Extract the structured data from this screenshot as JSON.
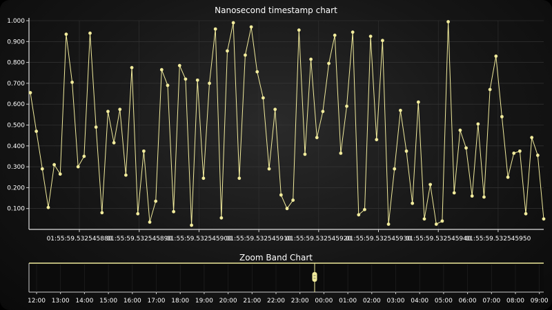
{
  "chart_data": [
    {
      "type": "line",
      "title": "Nanosecond timestamp chart",
      "xlabel": "",
      "ylabel": "",
      "ylim": [
        0,
        1.0
      ],
      "y_ticks": [
        "1.000",
        "0.900",
        "0.800",
        "0.700",
        "0.600",
        "0.500",
        "0.400",
        "0.300",
        "0.200",
        "0.100"
      ],
      "x_ticks": [
        "01:55:59.532545880",
        "01:55:59.532545890",
        "01:55:59.532545900",
        "01:55:59.532545910",
        "01:55:59.532545920",
        "01:55:59.532545930",
        "01:55:59.532545940",
        "01:55:59.532545950"
      ],
      "grid": true,
      "line_color": "#f2ec9c",
      "series": [
        {
          "values": [
            0.655,
            0.47,
            0.29,
            0.105,
            0.31,
            0.265,
            0.935,
            0.705,
            0.3,
            0.35,
            0.94,
            0.49,
            0.08,
            0.565,
            0.415,
            0.575,
            0.26,
            0.775,
            0.075,
            0.375,
            0.035,
            0.135,
            0.765,
            0.69,
            0.085,
            0.785,
            0.72,
            0.02,
            0.715,
            0.245,
            0.7,
            0.96,
            0.055,
            0.855,
            0.99,
            0.245,
            0.835,
            0.97,
            0.755,
            0.63,
            0.29,
            0.575,
            0.165,
            0.1,
            0.14,
            0.955,
            0.36,
            0.815,
            0.44,
            0.565,
            0.795,
            0.93,
            0.365,
            0.59,
            0.945,
            0.07,
            0.095,
            0.925,
            0.43,
            0.905,
            0.025,
            0.29,
            0.57,
            0.375,
            0.125,
            0.61,
            0.05,
            0.215,
            0.025,
            0.04,
            0.995,
            0.175,
            0.475,
            0.39,
            0.16,
            0.505,
            0.155,
            0.67,
            0.83,
            0.54,
            0.25,
            0.365,
            0.375,
            0.075,
            0.44,
            0.355,
            0.05
          ]
        }
      ]
    },
    {
      "type": "line",
      "title": "Zoom Band Chart",
      "x_ticks": [
        "12:00",
        "13:00",
        "14:00",
        "15:00",
        "16:00",
        "17:00",
        "18:00",
        "19:00",
        "20:00",
        "21:00",
        "22:00",
        "23:00",
        "00:00",
        "01:00",
        "02:00",
        "03:00",
        "04:00",
        "05:00",
        "06:00",
        "07:00",
        "08:00",
        "09:00"
      ],
      "band_line_color": "#f2ec9c"
    }
  ]
}
